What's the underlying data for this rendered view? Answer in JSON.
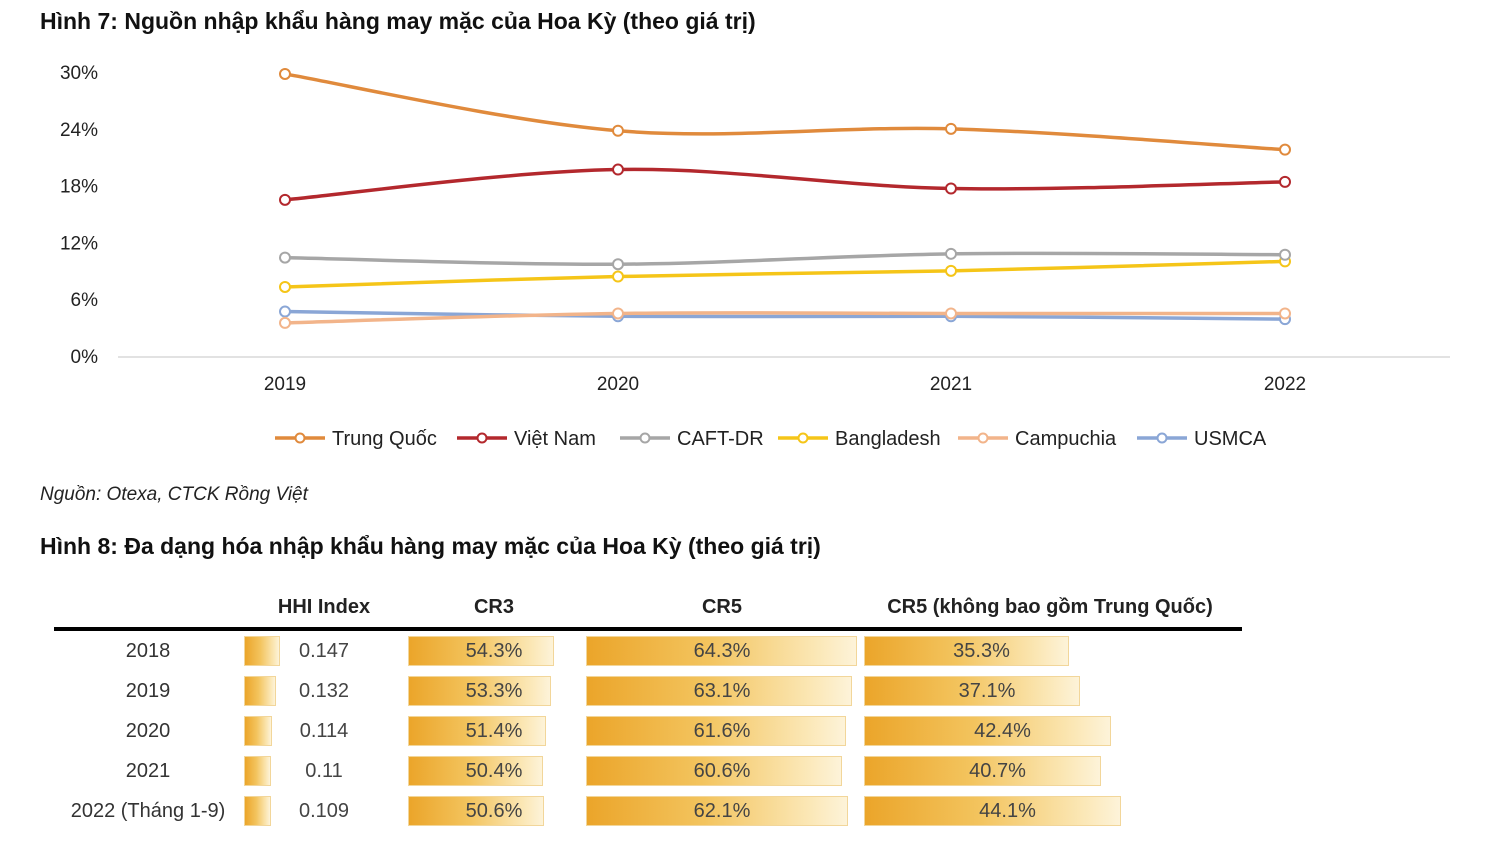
{
  "figure7": {
    "title": "Hình 7: Nguồn nhập khẩu hàng may mặc của Hoa Kỳ (theo giá trị)",
    "source": "Nguồn: Otexa, CTCK Rồng Việt"
  },
  "figure8": {
    "title": "Hình 8: Đa dạng hóa nhập khẩu hàng may mặc của Hoa Kỳ (theo giá trị)"
  },
  "chart_data": [
    {
      "type": "line",
      "title": "Hình 7: Nguồn nhập khẩu hàng may mặc của Hoa Kỳ (theo giá trị)",
      "x": [
        "2019",
        "2020",
        "2021",
        "2022"
      ],
      "ylim": [
        0,
        30
      ],
      "yticks": [
        0,
        6,
        12,
        18,
        24,
        30
      ],
      "ytick_labels": [
        "0%",
        "6%",
        "12%",
        "18%",
        "24%",
        "30%"
      ],
      "legend_position": "bottom",
      "series": [
        {
          "name": "Trung Quốc",
          "color": "#e08a3c",
          "values": [
            29.9,
            23.9,
            24.1,
            21.9
          ]
        },
        {
          "name": "Việt Nam",
          "color": "#b3282d",
          "values": [
            16.6,
            19.8,
            17.8,
            18.5
          ]
        },
        {
          "name": "CAFT-DR",
          "color": "#a6a6a6",
          "values": [
            10.5,
            9.8,
            10.9,
            10.8
          ]
        },
        {
          "name": "Bangladesh",
          "color": "#f5c518",
          "values": [
            7.4,
            8.5,
            9.1,
            10.1
          ]
        },
        {
          "name": "Campuchia",
          "color": "#f2b48a",
          "values": [
            3.6,
            4.6,
            4.6,
            4.6
          ]
        },
        {
          "name": "USMCA",
          "color": "#8aa6d6",
          "values": [
            4.8,
            4.3,
            4.3,
            4.0
          ]
        }
      ]
    },
    {
      "type": "table",
      "title": "Hình 8: Đa dạng hóa nhập khẩu hàng may mặc của Hoa Kỳ (theo giá trị)",
      "columns": [
        "HHI Index",
        "CR3",
        "CR5",
        "CR5 (không bao gồm Trung Quốc)"
      ],
      "rows": [
        {
          "year": "2018",
          "hhi": "0.147",
          "cr3": "54.3%",
          "cr5": "64.3%",
          "cr5x": "35.3%",
          "hhi_v": 0.147,
          "cr3_v": 54.3,
          "cr5_v": 64.3,
          "cr5x_v": 35.3
        },
        {
          "year": "2019",
          "hhi": "0.132",
          "cr3": "53.3%",
          "cr5": "63.1%",
          "cr5x": "37.1%",
          "hhi_v": 0.132,
          "cr3_v": 53.3,
          "cr5_v": 63.1,
          "cr5x_v": 37.1
        },
        {
          "year": "2020",
          "hhi": "0.114",
          "cr3": "51.4%",
          "cr5": "61.6%",
          "cr5x": "42.4%",
          "hhi_v": 0.114,
          "cr3_v": 51.4,
          "cr5_v": 61.6,
          "cr5x_v": 42.4
        },
        {
          "year": "2021",
          "hhi": "0.11",
          "cr3": "50.4%",
          "cr5": "60.6%",
          "cr5x": "40.7%",
          "hhi_v": 0.11,
          "cr3_v": 50.4,
          "cr5_v": 60.6,
          "cr5x_v": 40.7
        },
        {
          "year": "2022 (Tháng 1-9)",
          "hhi": "0.109",
          "cr3": "50.6%",
          "cr5": "62.1%",
          "cr5x": "44.1%",
          "hhi_v": 0.109,
          "cr3_v": 50.6,
          "cr5_v": 62.1,
          "cr5x_v": 44.1
        }
      ]
    }
  ]
}
